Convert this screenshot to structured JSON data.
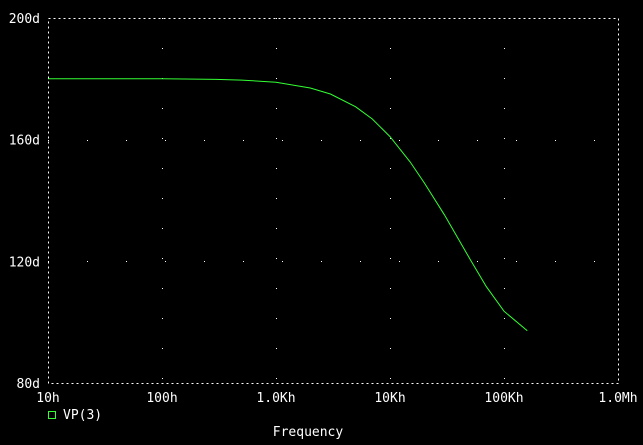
{
  "colors": {
    "background": "#000000",
    "frame": "#FFFFFF",
    "grid": "#FFFFFF",
    "text": "#FFFFFF",
    "trace": "#33FF33"
  },
  "chart_data": {
    "type": "line",
    "xscale": "log",
    "xlim": [
      10,
      1000000
    ],
    "ylim": [
      80,
      200
    ],
    "x_tick_values": [
      10,
      100,
      1000,
      10000,
      100000,
      1000000
    ],
    "x_tick_labels": [
      "10h",
      "100h",
      "1.0Kh",
      "10Kh",
      "100Kh",
      "1.0Mh"
    ],
    "y_tick_values": [
      80,
      120,
      160,
      200
    ],
    "y_tick_labels": [
      "80d",
      "120d",
      "160d",
      "200d"
    ],
    "grid": "dotted",
    "xlabel": "Frequency",
    "ylabel": "",
    "legend_position": "bottom-left",
    "series": [
      {
        "name": "VP(3)",
        "x": [
          10,
          30,
          100,
          300,
          500,
          1000,
          2000,
          3000,
          5000,
          7000,
          10000,
          15000,
          20000,
          30000,
          50000,
          70000,
          100000,
          160000
        ],
        "values": [
          180,
          180,
          180,
          179.8,
          179.6,
          178.9,
          177.0,
          175.0,
          170.8,
          166.8,
          161.0,
          152.7,
          145.8,
          135.3,
          120.9,
          111.7,
          103.6,
          97.2
        ]
      }
    ]
  }
}
